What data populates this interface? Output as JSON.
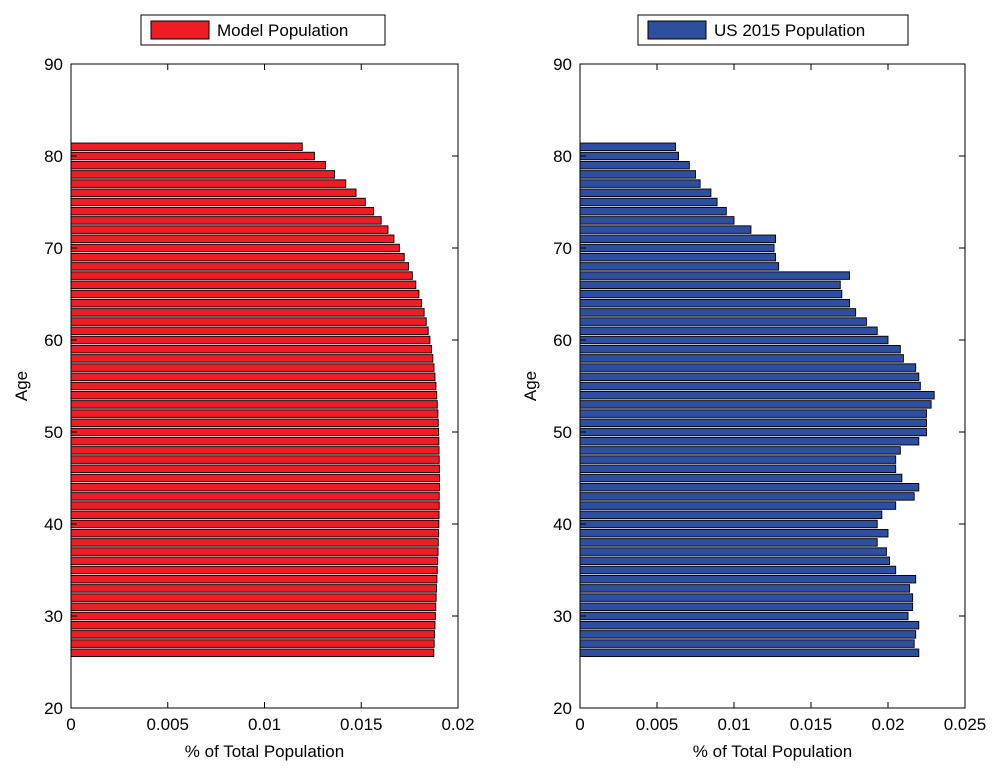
{
  "colors": {
    "model_bar": "#ee1c24",
    "us_bar": "#2e4fa0",
    "bar_edge": "#000000",
    "axes": "#000000",
    "background": "#ffffff"
  },
  "chart_data": [
    {
      "type": "bar",
      "orientation": "horizontal",
      "series": [
        {
          "name": "Model Population",
          "color": "#ee1c24",
          "x_age": [
            26,
            27,
            28,
            29,
            30,
            31,
            32,
            33,
            34,
            35,
            36,
            37,
            38,
            39,
            40,
            41,
            42,
            43,
            44,
            45,
            46,
            47,
            48,
            49,
            50,
            51,
            52,
            53,
            54,
            55,
            56,
            57,
            58,
            59,
            60,
            61,
            62,
            63,
            64,
            65,
            66,
            67,
            68,
            69,
            70,
            71,
            72,
            73,
            74,
            75,
            76,
            77,
            78,
            79,
            80,
            81
          ],
          "values": [
            0.01875,
            0.01877,
            0.01879,
            0.01881,
            0.01883,
            0.01885,
            0.01887,
            0.01889,
            0.01891,
            0.01893,
            0.01895,
            0.01897,
            0.01898,
            0.019,
            0.01901,
            0.01902,
            0.01903,
            0.01903,
            0.01904,
            0.01904,
            0.01904,
            0.01903,
            0.01902,
            0.01901,
            0.019,
            0.01898,
            0.01896,
            0.01893,
            0.0189,
            0.01886,
            0.01881,
            0.01876,
            0.0187,
            0.01863,
            0.01855,
            0.01846,
            0.01836,
            0.01825,
            0.01812,
            0.01798,
            0.01782,
            0.01764,
            0.01744,
            0.01722,
            0.01697,
            0.01669,
            0.01638,
            0.01603,
            0.01564,
            0.01521,
            0.01473,
            0.0142,
            0.01362,
            0.01315,
            0.01258,
            0.01195
          ]
        }
      ],
      "legend": [
        "Model Population"
      ],
      "legend_position": "top-center-outside",
      "xlabel": "% of Total Population",
      "ylabel": "Age",
      "xlim": [
        0,
        0.02
      ],
      "ylim": [
        20,
        90
      ],
      "xticks": [
        0,
        0.005,
        0.01,
        0.015,
        0.02
      ],
      "xtick_labels": [
        "0",
        "0.005",
        "0.01",
        "0.015",
        "0.02"
      ],
      "yticks": [
        20,
        30,
        40,
        50,
        60,
        70,
        80,
        90
      ],
      "ytick_labels": [
        "20",
        "30",
        "40",
        "50",
        "60",
        "70",
        "80",
        "90"
      ],
      "grid": false
    },
    {
      "type": "bar",
      "orientation": "horizontal",
      "series": [
        {
          "name": "US 2015 Population",
          "color": "#2e4fa0",
          "x_age": [
            26,
            27,
            28,
            29,
            30,
            31,
            32,
            33,
            34,
            35,
            36,
            37,
            38,
            39,
            40,
            41,
            42,
            43,
            44,
            45,
            46,
            47,
            48,
            49,
            50,
            51,
            52,
            53,
            54,
            55,
            56,
            57,
            58,
            59,
            60,
            61,
            62,
            63,
            64,
            65,
            66,
            67,
            68,
            69,
            70,
            71,
            72,
            73,
            74,
            75,
            76,
            77,
            78,
            79,
            80,
            81
          ],
          "values": [
            0.022,
            0.0217,
            0.0218,
            0.022,
            0.0213,
            0.0216,
            0.0216,
            0.0214,
            0.0218,
            0.0205,
            0.0201,
            0.0199,
            0.0193,
            0.02,
            0.0193,
            0.0196,
            0.0205,
            0.0217,
            0.022,
            0.0209,
            0.0205,
            0.0205,
            0.0208,
            0.022,
            0.0225,
            0.0225,
            0.0225,
            0.0228,
            0.023,
            0.0221,
            0.022,
            0.0218,
            0.021,
            0.0208,
            0.02,
            0.0193,
            0.0186,
            0.0179,
            0.0175,
            0.017,
            0.0169,
            0.0175,
            0.0129,
            0.0127,
            0.0126,
            0.0127,
            0.0111,
            0.01,
            0.0095,
            0.0089,
            0.0085,
            0.0078,
            0.0075,
            0.0071,
            0.0064,
            0.0062
          ]
        }
      ],
      "legend": [
        "US 2015 Population"
      ],
      "legend_position": "top-center-outside",
      "xlabel": "% of Total Population",
      "ylabel": "Age",
      "xlim": [
        0,
        0.025
      ],
      "ylim": [
        20,
        90
      ],
      "xticks": [
        0,
        0.005,
        0.01,
        0.015,
        0.02,
        0.025
      ],
      "xtick_labels": [
        "0",
        "0.005",
        "0.01",
        "0.015",
        "0.02",
        "0.025"
      ],
      "yticks": [
        20,
        30,
        40,
        50,
        60,
        70,
        80,
        90
      ],
      "ytick_labels": [
        "20",
        "30",
        "40",
        "50",
        "60",
        "70",
        "80",
        "90"
      ],
      "grid": false
    }
  ]
}
